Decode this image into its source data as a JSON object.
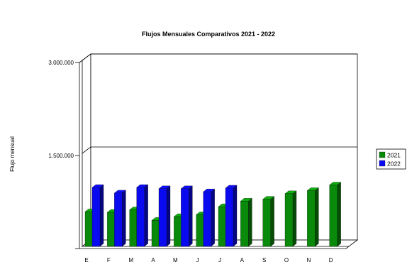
{
  "chart_data": {
    "type": "bar",
    "title": "Flujos Mensuales Comparativos 2021 - 2022",
    "ylabel": "Flujo mensual",
    "xlabel": "",
    "categories": [
      "E",
      "F",
      "M",
      "A",
      "M",
      "J",
      "J",
      "A",
      "S",
      "O",
      "N",
      "D"
    ],
    "yticks": [
      {
        "value": 0,
        "label": ""
      },
      {
        "value": 1500000,
        "label": "1.500.000"
      },
      {
        "value": 3000000,
        "label": "3.000.000"
      }
    ],
    "ylim": [
      0,
      3000000
    ],
    "grid": true,
    "legend_position": "right",
    "series": [
      {
        "name": "2021",
        "color": "#0a8a0a",
        "values": [
          560000,
          550000,
          590000,
          420000,
          480000,
          510000,
          640000,
          730000,
          760000,
          850000,
          900000,
          990000
        ]
      },
      {
        "name": "2022",
        "color": "#0a0af0",
        "values": [
          950000,
          860000,
          950000,
          930000,
          930000,
          880000,
          940000,
          null,
          null,
          null,
          null,
          null
        ]
      }
    ]
  }
}
